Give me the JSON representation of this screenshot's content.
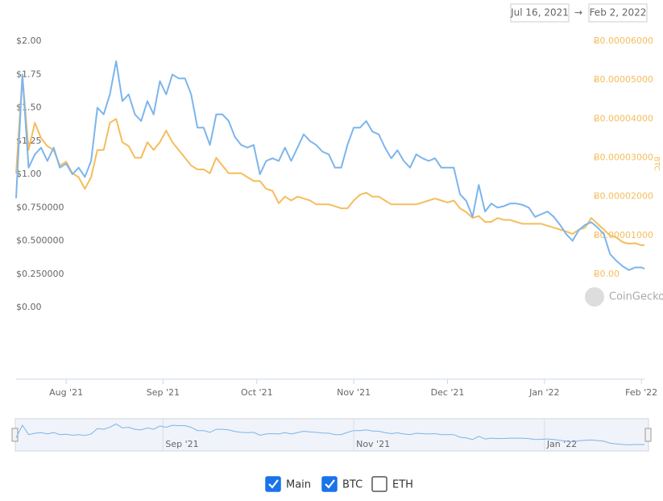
{
  "chart_data": {
    "type": "line",
    "date_from": "Jul 16, 2021",
    "range_separator": "→",
    "date_to": "Feb 2, 2022",
    "xlim": [
      "2021-07-16",
      "2022-02-02"
    ],
    "x": [
      "2021-07-16",
      "2021-07-18",
      "2021-07-20",
      "2021-07-22",
      "2021-07-24",
      "2021-07-26",
      "2021-07-28",
      "2021-07-30",
      "2021-08-01",
      "2021-08-03",
      "2021-08-05",
      "2021-08-07",
      "2021-08-09",
      "2021-08-11",
      "2021-08-13",
      "2021-08-15",
      "2021-08-17",
      "2021-08-19",
      "2021-08-21",
      "2021-08-23",
      "2021-08-25",
      "2021-08-27",
      "2021-08-29",
      "2021-08-31",
      "2021-09-02",
      "2021-09-04",
      "2021-09-06",
      "2021-09-08",
      "2021-09-10",
      "2021-09-12",
      "2021-09-14",
      "2021-09-16",
      "2021-09-18",
      "2021-09-20",
      "2021-09-22",
      "2021-09-24",
      "2021-09-26",
      "2021-09-28",
      "2021-09-30",
      "2021-10-02",
      "2021-10-04",
      "2021-10-06",
      "2021-10-08",
      "2021-10-10",
      "2021-10-12",
      "2021-10-14",
      "2021-10-16",
      "2021-10-18",
      "2021-10-20",
      "2021-10-22",
      "2021-10-24",
      "2021-10-26",
      "2021-10-28",
      "2021-10-30",
      "2021-11-01",
      "2021-11-03",
      "2021-11-05",
      "2021-11-07",
      "2021-11-09",
      "2021-11-11",
      "2021-11-13",
      "2021-11-15",
      "2021-11-17",
      "2021-11-19",
      "2021-11-21",
      "2021-11-23",
      "2021-11-25",
      "2021-11-27",
      "2021-11-29",
      "2021-12-01",
      "2021-12-03",
      "2021-12-05",
      "2021-12-07",
      "2021-12-09",
      "2021-12-11",
      "2021-12-13",
      "2021-12-15",
      "2021-12-17",
      "2021-12-19",
      "2021-12-21",
      "2021-12-23",
      "2021-12-25",
      "2021-12-27",
      "2021-12-29",
      "2021-12-31",
      "2022-01-02",
      "2022-01-04",
      "2022-01-06",
      "2022-01-08",
      "2022-01-10",
      "2022-01-12",
      "2022-01-14",
      "2022-01-16",
      "2022-01-18",
      "2022-01-20",
      "2022-01-22",
      "2022-01-24",
      "2022-01-26",
      "2022-01-28",
      "2022-01-30",
      "2022-02-01",
      "2022-02-02"
    ],
    "series": [
      {
        "name": "Main",
        "color": "#7cb5ec",
        "axis": "y",
        "values": [
          0.82,
          1.75,
          1.05,
          1.15,
          1.2,
          1.1,
          1.2,
          1.05,
          1.08,
          1.0,
          1.05,
          0.98,
          1.1,
          1.5,
          1.45,
          1.6,
          1.85,
          1.55,
          1.6,
          1.45,
          1.4,
          1.55,
          1.45,
          1.7,
          1.6,
          1.75,
          1.72,
          1.72,
          1.6,
          1.35,
          1.35,
          1.22,
          1.45,
          1.45,
          1.4,
          1.28,
          1.22,
          1.2,
          1.22,
          1.0,
          1.1,
          1.12,
          1.1,
          1.2,
          1.1,
          1.2,
          1.3,
          1.25,
          1.22,
          1.17,
          1.15,
          1.05,
          1.05,
          1.22,
          1.35,
          1.35,
          1.4,
          1.32,
          1.3,
          1.2,
          1.12,
          1.18,
          1.1,
          1.05,
          1.15,
          1.12,
          1.1,
          1.12,
          1.05,
          1.05,
          1.05,
          0.85,
          0.8,
          0.68,
          0.92,
          0.72,
          0.78,
          0.75,
          0.76,
          0.78,
          0.78,
          0.77,
          0.75,
          0.68,
          0.7,
          0.72,
          0.68,
          0.62,
          0.55,
          0.5,
          0.58,
          0.62,
          0.64,
          0.6,
          0.55,
          0.4,
          0.35,
          0.31,
          0.28,
          0.3,
          0.3,
          0.29
        ]
      },
      {
        "name": "BTC",
        "color": "#f5bd5c",
        "axis": "y2",
        "values": [
          2.6e-05,
          5.1e-05,
          3.2e-05,
          3.9e-05,
          3.5e-05,
          3.3e-05,
          3.2e-05,
          2.8e-05,
          2.9e-05,
          2.6e-05,
          2.5e-05,
          2.2e-05,
          2.5e-05,
          3.2e-05,
          3.2e-05,
          3.9e-05,
          4e-05,
          3.4e-05,
          3.3e-05,
          3e-05,
          3e-05,
          3.4e-05,
          3.2e-05,
          3.4e-05,
          3.7e-05,
          3.4e-05,
          3.2e-05,
          3e-05,
          2.8e-05,
          2.7e-05,
          2.7e-05,
          2.6e-05,
          3e-05,
          2.8e-05,
          2.6e-05,
          2.6e-05,
          2.6e-05,
          2.5e-05,
          2.4e-05,
          2.4e-05,
          2.2e-05,
          2.15e-05,
          1.83e-05,
          2e-05,
          1.9e-05,
          2e-05,
          1.95e-05,
          1.9e-05,
          1.8e-05,
          1.8e-05,
          1.8e-05,
          1.75e-05,
          1.7e-05,
          1.7e-05,
          1.9e-05,
          2.05e-05,
          2.1e-05,
          2e-05,
          2e-05,
          1.9e-05,
          1.8e-05,
          1.8e-05,
          1.8e-05,
          1.8e-05,
          1.8e-05,
          1.85e-05,
          1.9e-05,
          1.95e-05,
          1.9e-05,
          1.85e-05,
          1.9e-05,
          1.7e-05,
          1.6e-05,
          1.45e-05,
          1.5e-05,
          1.35e-05,
          1.35e-05,
          1.45e-05,
          1.4e-05,
          1.4e-05,
          1.35e-05,
          1.3e-05,
          1.3e-05,
          1.3e-05,
          1.3e-05,
          1.25e-05,
          1.2e-05,
          1.15e-05,
          1.1e-05,
          1.04e-05,
          1.15e-05,
          1.2e-05,
          1.45e-05,
          1.3e-05,
          1.15e-05,
          1e-05,
          9.5e-06,
          8.3e-06,
          7.9e-06,
          8e-06,
          7.5e-06,
          7.5e-06
        ]
      }
    ],
    "ylim": [
      0,
      2
    ],
    "yticks": [
      {
        "value": 0,
        "label": "$0.00"
      },
      {
        "value": 0.25,
        "label": "$0.250000"
      },
      {
        "value": 0.5,
        "label": "$0.500000"
      },
      {
        "value": 0.75,
        "label": "$0.750000"
      },
      {
        "value": 1,
        "label": "$1.00"
      },
      {
        "value": 1.25,
        "label": "$1.25"
      },
      {
        "value": 1.5,
        "label": "$1.50"
      },
      {
        "value": 1.75,
        "label": "$1.75"
      },
      {
        "value": 2,
        "label": "$2.00"
      }
    ],
    "y2lim": [
      -8.5e-06,
      6e-05
    ],
    "y2label": "BTC",
    "y2ticks": [
      {
        "value": 0,
        "label": "Ƀ0.00"
      },
      {
        "value": 1e-05,
        "label": "Ƀ0.00001000"
      },
      {
        "value": 2e-05,
        "label": "Ƀ0.00002000"
      },
      {
        "value": 3e-05,
        "label": "Ƀ0.00003000"
      },
      {
        "value": 4e-05,
        "label": "Ƀ0.00004000"
      },
      {
        "value": 5e-05,
        "label": "Ƀ0.00005000"
      },
      {
        "value": 6e-05,
        "label": "Ƀ0.00006000"
      }
    ],
    "xticks": [
      {
        "value": "2021-08-01",
        "label": "Aug '21"
      },
      {
        "value": "2021-09-01",
        "label": "Sep '21"
      },
      {
        "value": "2021-10-01",
        "label": "Oct '21"
      },
      {
        "value": "2021-11-01",
        "label": "Nov '21"
      },
      {
        "value": "2021-12-01",
        "label": "Dec '21"
      },
      {
        "value": "2022-01-01",
        "label": "Jan '22"
      },
      {
        "value": "2022-02-01",
        "label": "Feb '22"
      }
    ],
    "navigator_ticks": [
      {
        "value": "2021-09-01",
        "label": "Sep '21"
      },
      {
        "value": "2021-11-01",
        "label": "Nov '21"
      },
      {
        "value": "2022-01-01",
        "label": "Jan '22"
      }
    ],
    "watermark": "CoinGecko",
    "legend": [
      {
        "label": "Main",
        "checked": true
      },
      {
        "label": "BTC",
        "checked": true
      },
      {
        "label": "ETH",
        "checked": false
      }
    ],
    "grid": false
  }
}
